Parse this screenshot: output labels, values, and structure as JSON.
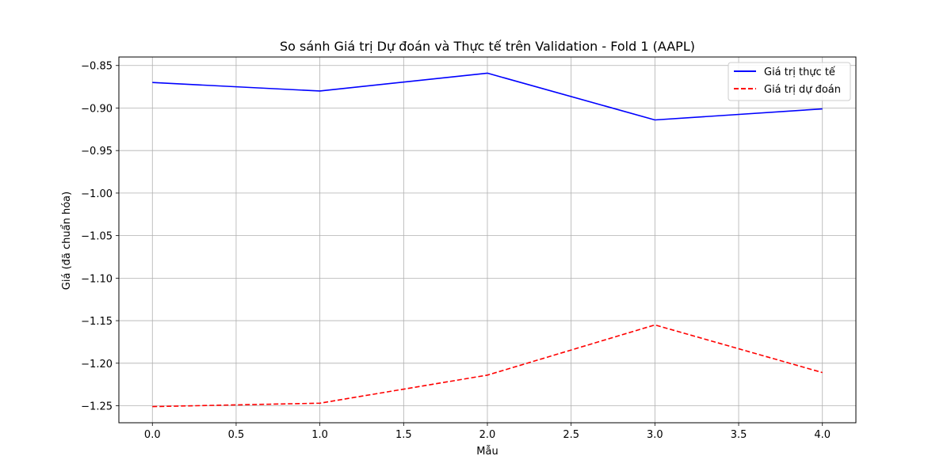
{
  "chart_data": {
    "type": "line",
    "title": "So sánh Giá trị Dự đoán và Thực tế trên Validation - Fold 1 (AAPL)",
    "xlabel": "Mẫu",
    "ylabel": "Giá (đã chuẩn hóa)",
    "x": [
      0,
      1,
      2,
      3,
      4
    ],
    "xlim": [
      -0.2,
      4.2
    ],
    "ylim": [
      -1.27,
      -0.84
    ],
    "xticks": [
      0.0,
      0.5,
      1.0,
      1.5,
      2.0,
      2.5,
      3.0,
      3.5,
      4.0
    ],
    "xtick_labels": [
      "0.0",
      "0.5",
      "1.0",
      "1.5",
      "2.0",
      "2.5",
      "3.0",
      "3.5",
      "4.0"
    ],
    "yticks": [
      -0.85,
      -0.9,
      -0.95,
      -1.0,
      -1.05,
      -1.1,
      -1.15,
      -1.2,
      -1.25
    ],
    "ytick_labels": [
      "−0.85",
      "−0.90",
      "−0.95",
      "−1.00",
      "−1.05",
      "−1.10",
      "−1.15",
      "−1.20",
      "−1.25"
    ],
    "grid": true,
    "legend_position": "top-right",
    "series": [
      {
        "name": "Giá trị thực tế",
        "values": [
          -0.87,
          -0.88,
          -0.859,
          -0.914,
          -0.901
        ],
        "color": "#0000ff",
        "style": "solid"
      },
      {
        "name": "Giá trị dự đoán",
        "values": [
          -1.251,
          -1.247,
          -1.214,
          -1.155,
          -1.211
        ],
        "color": "#ff0000",
        "style": "dashed"
      }
    ]
  }
}
